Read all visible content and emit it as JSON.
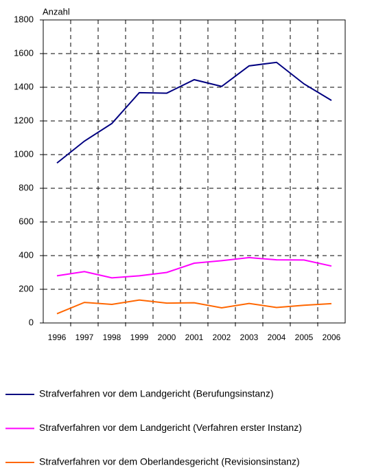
{
  "chart_data": {
    "type": "line",
    "y_label": "Anzahl",
    "categories": [
      "1996",
      "1997",
      "1998",
      "1999",
      "2000",
      "2001",
      "2002",
      "2003",
      "2004",
      "2005",
      "2006"
    ],
    "series": [
      {
        "name": "Strafverfahren vor dem Landgericht (Berufungsinstanz)",
        "color": "#000080",
        "values": [
          950,
          1080,
          1185,
          1368,
          1365,
          1445,
          1405,
          1527,
          1548,
          1420,
          1322
        ]
      },
      {
        "name": "Strafverfahren vor dem Landgericht (Verfahren erster  Instanz)",
        "color": "#ff00ff",
        "values": [
          280,
          305,
          268,
          280,
          300,
          355,
          370,
          388,
          375,
          374,
          338
        ]
      },
      {
        "name": "Strafverfahren vor dem Oberlandesgericht (Revisionsinstanz)",
        "color": "#ff6600",
        "values": [
          55,
          122,
          110,
          136,
          118,
          120,
          90,
          116,
          92,
          105,
          115
        ]
      }
    ],
    "ylim": [
      0,
      1800
    ],
    "yticks": [
      0,
      200,
      400,
      600,
      800,
      1000,
      1200,
      1400,
      1600,
      1800
    ],
    "grid": true,
    "legend": "bottom"
  }
}
